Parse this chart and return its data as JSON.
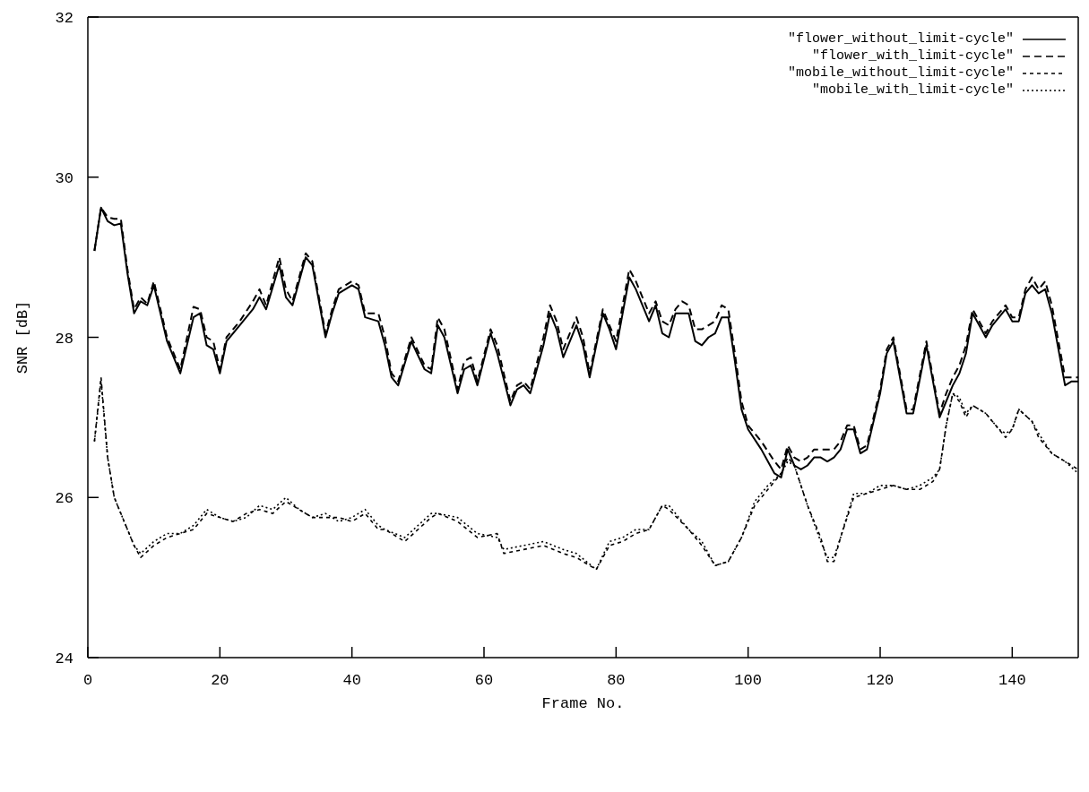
{
  "chart_data": {
    "type": "line",
    "xlabel": "Frame No.",
    "ylabel": "SNR [dB]",
    "xlim": [
      0,
      150
    ],
    "xticks": [
      0,
      20,
      40,
      60,
      80,
      100,
      120,
      140
    ],
    "ylim": [
      24,
      32
    ],
    "yticks": [
      24,
      26,
      28,
      30,
      32
    ],
    "grid": false,
    "legend": "top right",
    "marker": "none",
    "series": [
      {
        "name": "\"flower_without_limit-cycle\"",
        "color": "#000000",
        "line_style": "solid",
        "x": [
          1,
          2,
          3,
          4,
          5,
          6,
          7,
          8,
          9,
          10,
          12,
          14,
          16,
          17,
          18,
          19,
          20,
          21,
          23,
          25,
          26,
          27,
          29,
          30,
          31,
          33,
          34,
          36,
          37,
          38,
          40,
          41,
          42,
          44,
          45,
          46,
          47,
          49,
          51,
          52,
          53,
          54,
          56,
          57,
          58,
          59,
          61,
          62,
          64,
          65,
          66,
          67,
          69,
          70,
          71,
          72,
          74,
          75,
          76,
          78,
          79,
          80,
          82,
          83,
          85,
          86,
          87,
          88,
          89,
          90,
          91,
          92,
          93,
          94,
          95,
          96,
          97,
          98,
          99,
          100,
          102,
          104,
          105,
          106,
          107,
          108,
          109,
          110,
          111,
          112,
          113,
          114,
          115,
          116,
          117,
          118,
          120,
          121,
          122,
          124,
          125,
          127,
          129,
          130,
          131,
          132,
          133,
          134,
          135,
          136,
          137,
          139,
          140,
          141,
          142,
          143,
          144,
          145,
          146,
          148,
          149,
          150
        ],
        "values": [
          29.08,
          29.62,
          29.45,
          29.4,
          29.42,
          28.8,
          28.3,
          28.45,
          28.4,
          28.65,
          27.95,
          27.55,
          28.25,
          28.3,
          27.9,
          27.85,
          27.55,
          27.95,
          28.15,
          28.35,
          28.5,
          28.35,
          28.9,
          28.5,
          28.4,
          29.0,
          28.9,
          28.0,
          28.3,
          28.55,
          28.65,
          28.6,
          28.25,
          28.2,
          27.9,
          27.5,
          27.4,
          27.95,
          27.6,
          27.55,
          28.15,
          28.0,
          27.3,
          27.6,
          27.65,
          27.4,
          28.05,
          27.8,
          27.15,
          27.35,
          27.4,
          27.3,
          27.9,
          28.3,
          28.1,
          27.75,
          28.15,
          27.9,
          27.5,
          28.3,
          28.1,
          27.85,
          28.75,
          28.6,
          28.2,
          28.4,
          28.05,
          28.0,
          28.3,
          28.3,
          28.3,
          27.95,
          27.9,
          28.0,
          28.05,
          28.25,
          28.25,
          27.7,
          27.1,
          26.85,
          26.6,
          26.3,
          26.25,
          26.6,
          26.4,
          26.35,
          26.4,
          26.5,
          26.5,
          26.45,
          26.5,
          26.6,
          26.85,
          26.85,
          26.55,
          26.6,
          27.3,
          27.8,
          27.95,
          27.05,
          27.05,
          27.9,
          27.0,
          27.2,
          27.4,
          27.55,
          27.8,
          28.3,
          28.15,
          28.0,
          28.15,
          28.35,
          28.2,
          28.2,
          28.55,
          28.65,
          28.55,
          28.6,
          28.3,
          27.4,
          27.45,
          27.45
        ]
      },
      {
        "name": "\"flower_with_limit-cycle\"",
        "color": "#000000",
        "line_style": "dashed",
        "x": [
          1,
          2,
          3,
          4,
          5,
          6,
          7,
          8,
          9,
          10,
          12,
          14,
          16,
          17,
          18,
          19,
          20,
          21,
          23,
          25,
          26,
          27,
          29,
          30,
          31,
          33,
          34,
          36,
          37,
          38,
          40,
          41,
          42,
          44,
          45,
          46,
          47,
          49,
          51,
          52,
          53,
          54,
          56,
          57,
          58,
          59,
          61,
          62,
          64,
          65,
          66,
          67,
          69,
          70,
          71,
          72,
          74,
          75,
          76,
          78,
          79,
          80,
          82,
          83,
          85,
          86,
          87,
          88,
          89,
          90,
          91,
          92,
          93,
          94,
          95,
          96,
          97,
          98,
          99,
          100,
          102,
          104,
          105,
          106,
          107,
          108,
          109,
          110,
          111,
          112,
          113,
          114,
          115,
          116,
          117,
          118,
          120,
          121,
          122,
          124,
          125,
          127,
          129,
          130,
          131,
          132,
          133,
          134,
          135,
          136,
          137,
          139,
          140,
          141,
          142,
          143,
          144,
          145,
          146,
          148,
          149,
          150
        ],
        "values": [
          29.08,
          29.62,
          29.5,
          29.48,
          29.48,
          28.85,
          28.35,
          28.5,
          28.42,
          28.7,
          28.0,
          27.6,
          28.38,
          28.35,
          28.0,
          27.95,
          27.6,
          28.0,
          28.2,
          28.45,
          28.6,
          28.4,
          29.0,
          28.6,
          28.45,
          29.05,
          28.95,
          28.05,
          28.35,
          28.6,
          28.7,
          28.65,
          28.3,
          28.3,
          28.0,
          27.55,
          27.45,
          28.0,
          27.65,
          27.6,
          28.25,
          28.1,
          27.35,
          27.7,
          27.75,
          27.45,
          28.1,
          27.9,
          27.2,
          27.4,
          27.45,
          27.35,
          28.0,
          28.4,
          28.2,
          27.85,
          28.25,
          28.0,
          27.55,
          28.35,
          28.15,
          27.95,
          28.85,
          28.7,
          28.3,
          28.45,
          28.2,
          28.15,
          28.35,
          28.45,
          28.4,
          28.1,
          28.1,
          28.15,
          28.2,
          28.4,
          28.35,
          27.8,
          27.2,
          26.9,
          26.7,
          26.45,
          26.35,
          26.65,
          26.5,
          26.45,
          26.5,
          26.6,
          26.6,
          26.6,
          26.6,
          26.7,
          26.9,
          26.9,
          26.6,
          26.65,
          27.35,
          27.85,
          28.0,
          27.1,
          27.1,
          27.95,
          27.05,
          27.3,
          27.5,
          27.65,
          27.9,
          28.35,
          28.2,
          28.05,
          28.2,
          28.4,
          28.25,
          28.25,
          28.6,
          28.75,
          28.6,
          28.7,
          28.4,
          27.5,
          27.5,
          27.5
        ]
      },
      {
        "name": "\"mobile_without_limit-cycle\"",
        "color": "#000000",
        "line_style": "dashed",
        "x": [
          1,
          2,
          3,
          4,
          6,
          7,
          8,
          10,
          12,
          14,
          16,
          18,
          20,
          22,
          24,
          26,
          28,
          30,
          32,
          34,
          36,
          38,
          40,
          42,
          44,
          45,
          48,
          50,
          52,
          53,
          56,
          59,
          62,
          63,
          66,
          69,
          72,
          74,
          77,
          79,
          81,
          83,
          85,
          87,
          88,
          91,
          93,
          95,
          97,
          99,
          101,
          103,
          105,
          106,
          107,
          109,
          111,
          112,
          113,
          114,
          116,
          118,
          120,
          122,
          124,
          126,
          128,
          129,
          130,
          131,
          132,
          133,
          134,
          136,
          138,
          139,
          140,
          141,
          143,
          144,
          146,
          148,
          150
        ],
        "values": [
          26.7,
          27.5,
          26.5,
          26.0,
          25.6,
          25.4,
          25.25,
          25.4,
          25.5,
          25.55,
          25.6,
          25.8,
          25.75,
          25.7,
          25.8,
          25.85,
          25.8,
          25.95,
          25.85,
          25.75,
          25.75,
          25.75,
          25.7,
          25.8,
          25.6,
          25.6,
          25.45,
          25.6,
          25.75,
          25.8,
          25.7,
          25.5,
          25.55,
          25.3,
          25.35,
          25.4,
          25.3,
          25.25,
          25.1,
          25.4,
          25.45,
          25.55,
          25.6,
          25.9,
          25.85,
          25.6,
          25.4,
          25.15,
          25.2,
          25.5,
          25.9,
          26.1,
          26.3,
          26.5,
          26.4,
          25.9,
          25.5,
          25.2,
          25.2,
          25.5,
          26.0,
          26.05,
          26.1,
          26.15,
          26.1,
          26.1,
          26.2,
          26.35,
          26.9,
          27.3,
          27.2,
          27.0,
          27.15,
          27.05,
          26.85,
          26.75,
          26.85,
          27.1,
          26.95,
          26.75,
          26.55,
          26.45,
          26.35
        ]
      },
      {
        "name": "\"mobile_with_limit-cycle\"",
        "color": "#000000",
        "line_style": "dotted",
        "x": [
          1,
          2,
          3,
          4,
          6,
          7,
          8,
          10,
          12,
          14,
          16,
          18,
          20,
          22,
          24,
          26,
          28,
          30,
          32,
          34,
          36,
          38,
          40,
          42,
          44,
          45,
          48,
          50,
          52,
          53,
          56,
          59,
          62,
          63,
          66,
          69,
          72,
          74,
          77,
          79,
          81,
          83,
          85,
          87,
          88,
          91,
          93,
          95,
          97,
          99,
          101,
          103,
          105,
          106,
          107,
          109,
          111,
          112,
          113,
          114,
          116,
          118,
          120,
          122,
          124,
          126,
          128,
          129,
          130,
          131,
          132,
          133,
          134,
          136,
          138,
          139,
          140,
          141,
          143,
          144,
          146,
          148,
          150
        ],
        "values": [
          26.7,
          27.45,
          26.5,
          26.0,
          25.6,
          25.4,
          25.3,
          25.45,
          25.55,
          25.55,
          25.65,
          25.85,
          25.75,
          25.7,
          25.75,
          25.9,
          25.85,
          26.0,
          25.85,
          25.75,
          25.8,
          25.7,
          25.75,
          25.85,
          25.65,
          25.6,
          25.5,
          25.65,
          25.8,
          25.8,
          25.75,
          25.55,
          25.5,
          25.35,
          25.4,
          25.45,
          25.35,
          25.3,
          25.1,
          25.45,
          25.5,
          25.6,
          25.6,
          25.9,
          25.9,
          25.6,
          25.45,
          25.15,
          25.2,
          25.5,
          25.95,
          26.15,
          26.3,
          26.45,
          26.4,
          25.9,
          25.45,
          25.25,
          25.25,
          25.5,
          26.05,
          26.05,
          26.15,
          26.15,
          26.1,
          26.15,
          26.25,
          26.35,
          26.9,
          27.3,
          27.25,
          27.05,
          27.15,
          27.05,
          26.85,
          26.8,
          26.85,
          27.1,
          26.95,
          26.8,
          26.55,
          26.45,
          26.3
        ]
      }
    ]
  }
}
